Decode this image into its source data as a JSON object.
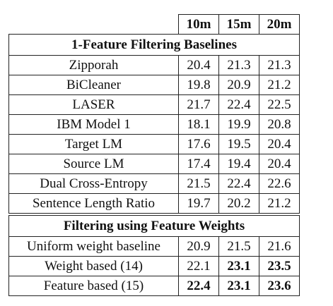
{
  "columns": [
    "10m",
    "15m",
    "20m"
  ],
  "sections": [
    {
      "title": "1-Feature Filtering Baselines",
      "rows": [
        {
          "name": "Zipporah",
          "values": [
            "20.4",
            "21.3",
            "21.3"
          ],
          "bold": [
            false,
            false,
            false
          ]
        },
        {
          "name": "BiCleaner",
          "values": [
            "19.8",
            "20.9",
            "21.2"
          ],
          "bold": [
            false,
            false,
            false
          ]
        },
        {
          "name": "LASER",
          "values": [
            "21.7",
            "22.4",
            "22.5"
          ],
          "bold": [
            false,
            false,
            false
          ]
        },
        {
          "name": "IBM Model 1",
          "values": [
            "18.1",
            "19.9",
            "20.8"
          ],
          "bold": [
            false,
            false,
            false
          ]
        },
        {
          "name": "Target LM",
          "values": [
            "17.6",
            "19.5",
            "20.4"
          ],
          "bold": [
            false,
            false,
            false
          ]
        },
        {
          "name": "Source LM",
          "values": [
            "17.4",
            "19.4",
            "20.4"
          ],
          "bold": [
            false,
            false,
            false
          ]
        },
        {
          "name": "Dual Cross-Entropy",
          "values": [
            "21.5",
            "22.4",
            "22.6"
          ],
          "bold": [
            false,
            false,
            false
          ]
        },
        {
          "name": "Sentence Length Ratio",
          "values": [
            "19.7",
            "20.2",
            "21.2"
          ],
          "bold": [
            false,
            false,
            false
          ]
        }
      ]
    },
    {
      "title": "Filtering using Feature Weights",
      "rows": [
        {
          "name": "Uniform weight baseline",
          "values": [
            "20.9",
            "21.5",
            "21.6"
          ],
          "bold": [
            false,
            false,
            false
          ]
        },
        {
          "name": "Weight based (14)",
          "values": [
            "22.1",
            "23.1",
            "23.5"
          ],
          "bold": [
            false,
            true,
            true
          ]
        },
        {
          "name": "Feature based (15)",
          "values": [
            "22.4",
            "23.1",
            "23.6"
          ],
          "bold": [
            true,
            true,
            true
          ]
        }
      ]
    }
  ]
}
